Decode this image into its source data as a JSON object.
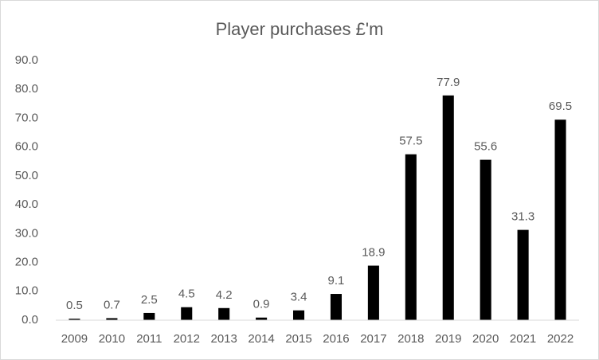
{
  "chart_data": {
    "type": "bar",
    "title": "Player purchases £'m",
    "categories": [
      "2009",
      "2010",
      "2011",
      "2012",
      "2013",
      "2014",
      "2015",
      "2016",
      "2017",
      "2018",
      "2019",
      "2020",
      "2021",
      "2022"
    ],
    "values": [
      0.5,
      0.7,
      2.5,
      4.5,
      4.2,
      0.9,
      3.4,
      9.1,
      18.9,
      57.5,
      77.9,
      55.6,
      31.3,
      69.5
    ],
    "color": "#000000",
    "ylim": [
      0,
      90
    ],
    "yticks": [
      {
        "value": 0,
        "label": "0.0"
      },
      {
        "value": 10,
        "label": "10.0"
      },
      {
        "value": 20,
        "label": "20.0"
      },
      {
        "value": 30,
        "label": "30.0"
      },
      {
        "value": 40,
        "label": "40.0"
      },
      {
        "value": 50,
        "label": "50.0"
      },
      {
        "value": 60,
        "label": "60.0"
      },
      {
        "value": 70,
        "label": "70.0"
      },
      {
        "value": 80,
        "label": "80.0"
      },
      {
        "value": 90,
        "label": "90.0"
      }
    ],
    "grid": false
  }
}
